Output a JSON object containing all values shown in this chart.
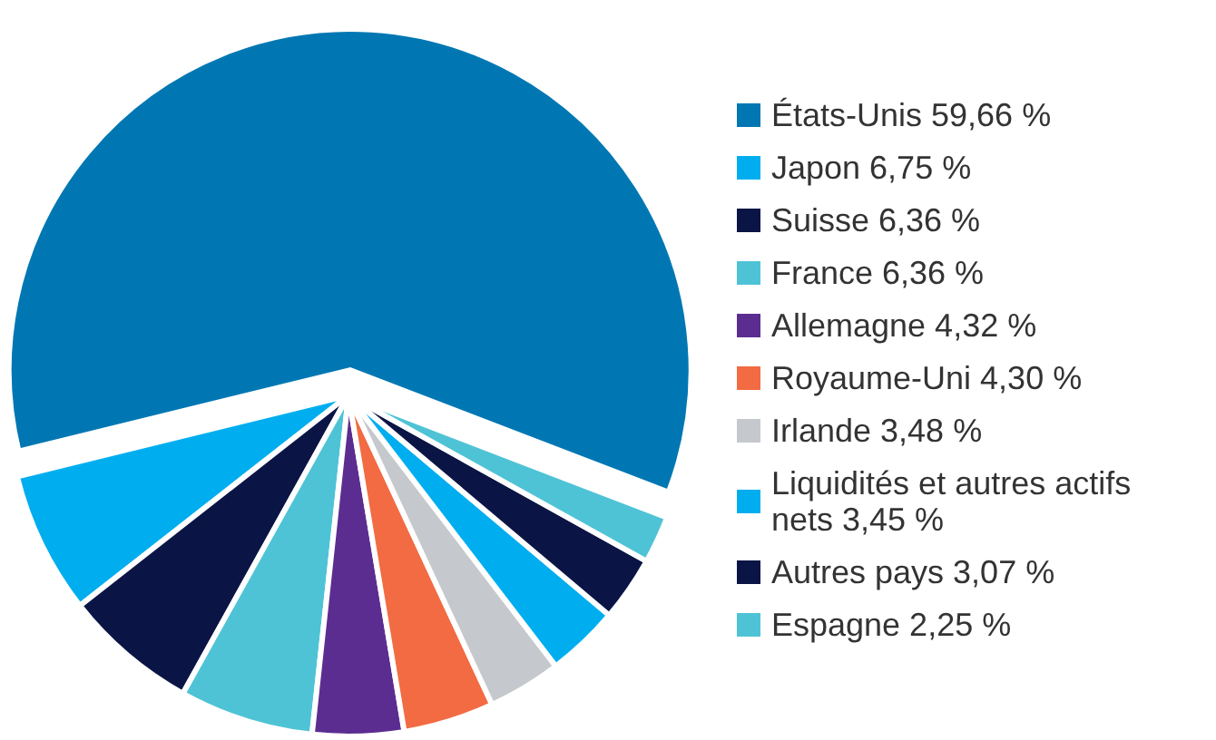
{
  "chart_data": {
    "type": "pie",
    "categories": [
      "États-Unis 59,66 %",
      "Japon 6,75 %",
      "Suisse 6,36 %",
      "France 6,36 %",
      "Allemagne 4,32 %",
      "Royaume-Uni 4,30 %",
      "Irlande 3,48 %",
      "Liquidités et autres actifs nets 3,45 %",
      "Autres pays 3,07 %",
      "Espagne 2,25 %"
    ],
    "values": [
      59.66,
      6.75,
      6.36,
      6.36,
      4.32,
      4.3,
      3.48,
      3.45,
      3.07,
      2.25
    ],
    "colors": [
      "#0077b3",
      "#00aeef",
      "#0b1545",
      "#4fc3d6",
      "#5c2d91",
      "#f26b43",
      "#c5c8cc",
      "#00aeef",
      "#0b1545",
      "#4fc3d6"
    ],
    "legend": "right"
  }
}
